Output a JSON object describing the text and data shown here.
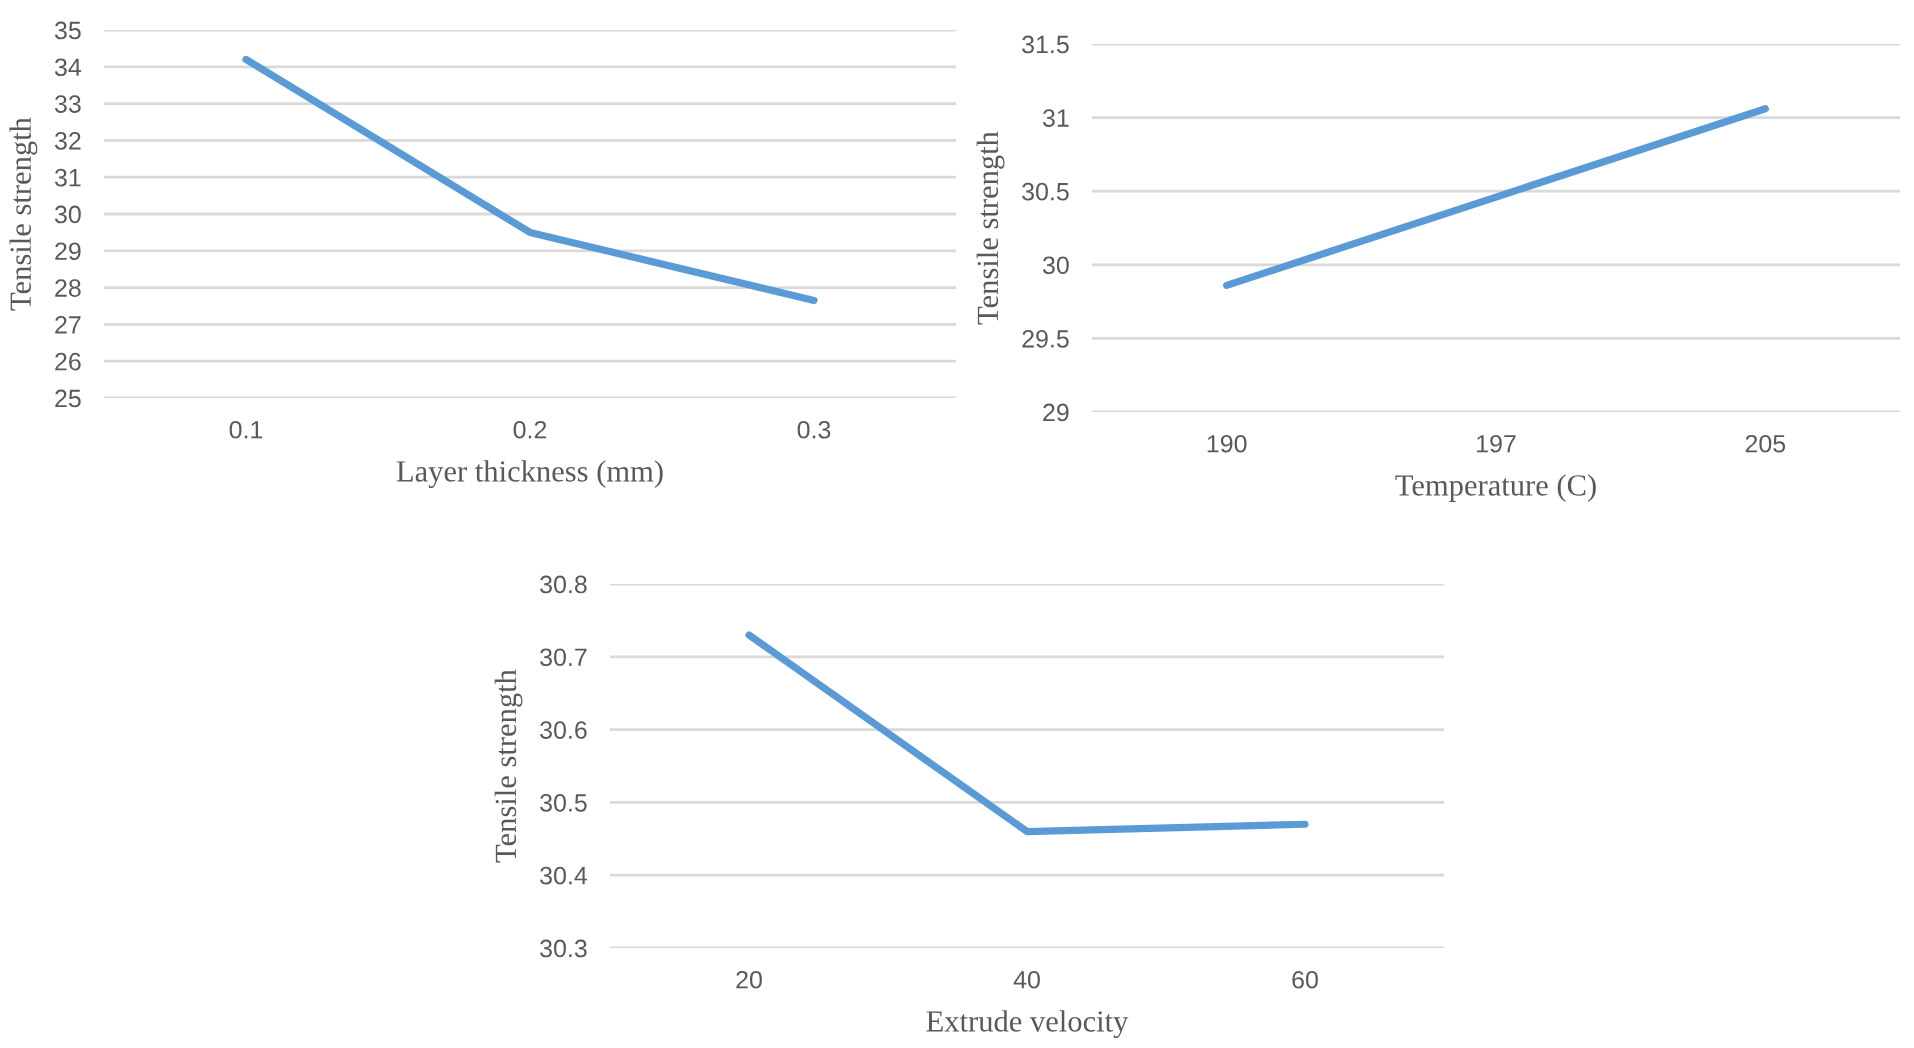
{
  "chart_data": [
    {
      "type": "line",
      "xlabel": "Layer thickness (mm)",
      "ylabel": "Tensile strength",
      "categories": [
        "0.1",
        "0.2",
        "0.3"
      ],
      "series": [
        {
          "color": "#5b9bd5",
          "values": [
            34.2,
            29.5,
            27.65
          ]
        }
      ],
      "ylim": [
        25,
        35
      ],
      "yticks": [
        25,
        26,
        27,
        28,
        29,
        30,
        31,
        32,
        33,
        34,
        35
      ],
      "grid": "y",
      "marker": "none",
      "line_style": "solid"
    },
    {
      "type": "line",
      "xlabel": "Temperature (C)",
      "ylabel": "Tensile strength",
      "categories": [
        "190",
        "197",
        "205"
      ],
      "series": [
        {
          "color": "#5b9bd5",
          "values": [
            29.86,
            30.46,
            31.06
          ]
        }
      ],
      "ylim": [
        29,
        31.5
      ],
      "yticks": [
        29,
        29.5,
        30,
        30.5,
        31,
        31.5
      ],
      "grid": "y",
      "marker": "none",
      "line_style": "solid"
    },
    {
      "type": "line",
      "xlabel": "Extrude velocity",
      "ylabel": "Tensile strength",
      "categories": [
        "20",
        "40",
        "60"
      ],
      "series": [
        {
          "color": "#5b9bd5",
          "values": [
            30.73,
            30.46,
            30.47
          ]
        }
      ],
      "ylim": [
        30.3,
        30.8
      ],
      "yticks": [
        30.3,
        30.4,
        30.5,
        30.6,
        30.7,
        30.8
      ],
      "grid": "y",
      "marker": "none",
      "line_style": "solid"
    }
  ]
}
